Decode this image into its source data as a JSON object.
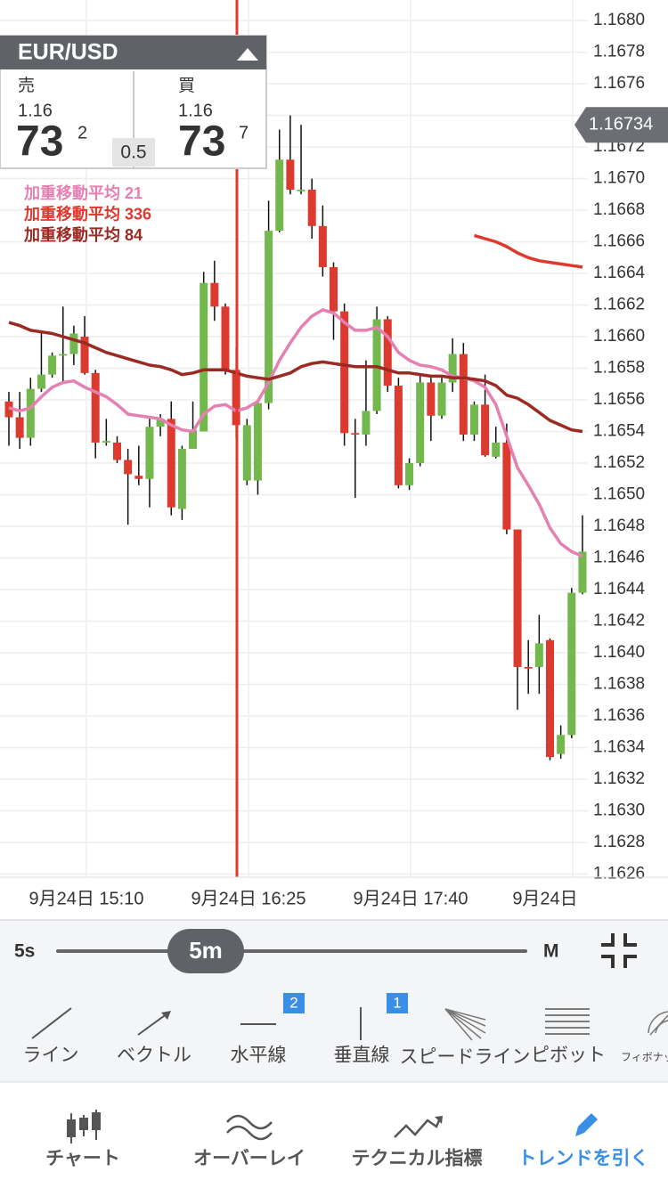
{
  "quote": {
    "pair": "EUR/USD",
    "sell_label": "売",
    "sell_big": "1.16",
    "sell_main": "73",
    "sell_pip": "2",
    "spread": 0.5,
    "buy_label": "買",
    "buy_big": "1.16",
    "buy_main": "73",
    "buy_pip": "7"
  },
  "chart_data": {
    "type": "candlestick",
    "up_color": "#72b84d",
    "down_color": "#dc3a2e",
    "ylim": [
      1.16258,
      1.16813
    ],
    "yticks": [
      1.1626,
      1.1628,
      {
        "value": 1.163,
        "label": "1.1630"
      },
      1.1632,
      1.1634,
      1.1636,
      1.1638,
      {
        "value": 1.164,
        "label": "1.1640"
      },
      1.1642,
      1.1644,
      1.1646,
      1.1648,
      {
        "value": 1.165,
        "label": "1.1650"
      },
      1.1652,
      1.1654,
      1.1656,
      1.1658,
      {
        "value": 1.166,
        "label": "1.1660"
      },
      1.1662,
      1.1664,
      1.1666,
      1.1668,
      {
        "value": 1.167,
        "label": "1.1670"
      },
      1.1672,
      1.1674,
      1.1676,
      1.1678,
      {
        "value": 1.168,
        "label": "1.1680"
      }
    ],
    "grid": true,
    "xtick_labels": [
      "9月24日 15:10",
      "9月24日 16:25",
      "9月24日 17:40",
      "9月24日"
    ],
    "current_price": 1.16734,
    "candles": [
      {
        "open": 1.16559,
        "high": 1.16565,
        "low": 1.16531,
        "close": 1.16549
      },
      {
        "open": 1.16549,
        "high": 1.16565,
        "low": 1.16529,
        "close": 1.16536
      },
      {
        "open": 1.16536,
        "high": 1.16574,
        "low": 1.16531,
        "close": 1.16567
      },
      {
        "open": 1.16567,
        "high": 1.16604,
        "low": 1.16565,
        "close": 1.16576
      },
      {
        "open": 1.16576,
        "high": 1.1659,
        "low": 1.16574,
        "close": 1.16588
      },
      {
        "open": 1.16588,
        "high": 1.16619,
        "low": 1.16571,
        "close": 1.16589
      },
      {
        "open": 1.16589,
        "high": 1.16607,
        "low": 1.16582,
        "close": 1.16602
      },
      {
        "open": 1.166,
        "high": 1.16613,
        "low": 1.16576,
        "close": 1.16577
      },
      {
        "open": 1.16577,
        "high": 1.16579,
        "low": 1.16523,
        "close": 1.16533
      },
      {
        "open": 1.16533,
        "high": 1.16548,
        "low": 1.16531,
        "close": 1.16534
      },
      {
        "open": 1.16533,
        "high": 1.16537,
        "low": 1.1652,
        "close": 1.16522
      },
      {
        "open": 1.16522,
        "high": 1.16529,
        "low": 1.16481,
        "close": 1.16513
      },
      {
        "open": 1.16512,
        "high": 1.16531,
        "low": 1.16506,
        "close": 1.1651
      },
      {
        "open": 1.1651,
        "high": 1.16548,
        "low": 1.16492,
        "close": 1.16543
      },
      {
        "open": 1.16543,
        "high": 1.16551,
        "low": 1.16537,
        "close": 1.16548
      },
      {
        "open": 1.16548,
        "high": 1.16559,
        "low": 1.16487,
        "close": 1.16492
      },
      {
        "open": 1.16491,
        "high": 1.16531,
        "low": 1.16484,
        "close": 1.16529
      },
      {
        "open": 1.16529,
        "high": 1.16559,
        "low": 1.16529,
        "close": 1.16541
      },
      {
        "open": 1.1654,
        "high": 1.16641,
        "low": 1.1654,
        "close": 1.16634
      },
      {
        "open": 1.16634,
        "high": 1.16648,
        "low": 1.1661,
        "close": 1.16619
      },
      {
        "open": 1.16619,
        "high": 1.16621,
        "low": 1.16576,
        "close": 1.16579
      },
      {
        "open": 1.16579,
        "high": 1.16593,
        "low": 1.16536,
        "close": 1.16544
      },
      {
        "open": 1.16509,
        "high": 1.16548,
        "low": 1.16506,
        "close": 1.16544
      },
      {
        "open": 1.16509,
        "high": 1.16559,
        "low": 1.165,
        "close": 1.16558
      },
      {
        "open": 1.16558,
        "high": 1.16686,
        "low": 1.16554,
        "close": 1.16667
      },
      {
        "open": 1.16667,
        "high": 1.16731,
        "low": 1.16666,
        "close": 1.16712
      },
      {
        "open": 1.16712,
        "high": 1.1674,
        "low": 1.1669,
        "close": 1.16693
      },
      {
        "open": 1.16692,
        "high": 1.16734,
        "low": 1.1669,
        "close": 1.16693
      },
      {
        "open": 1.16693,
        "high": 1.167,
        "low": 1.16662,
        "close": 1.1667
      },
      {
        "open": 1.1667,
        "high": 1.16683,
        "low": 1.16638,
        "close": 1.16644
      },
      {
        "open": 1.16644,
        "high": 1.16647,
        "low": 1.16598,
        "close": 1.16616
      },
      {
        "open": 1.16616,
        "high": 1.16621,
        "low": 1.16531,
        "close": 1.16539
      },
      {
        "open": 1.16539,
        "high": 1.16548,
        "low": 1.16498,
        "close": 1.16538
      },
      {
        "open": 1.16538,
        "high": 1.16585,
        "low": 1.16531,
        "close": 1.16553
      },
      {
        "open": 1.16553,
        "high": 1.16619,
        "low": 1.16551,
        "close": 1.16611
      },
      {
        "open": 1.16611,
        "high": 1.16613,
        "low": 1.16565,
        "close": 1.16569
      },
      {
        "open": 1.16569,
        "high": 1.16574,
        "low": 1.16504,
        "close": 1.16506
      },
      {
        "open": 1.16506,
        "high": 1.16523,
        "low": 1.16503,
        "close": 1.1652
      },
      {
        "open": 1.1652,
        "high": 1.16576,
        "low": 1.16518,
        "close": 1.16571
      },
      {
        "open": 1.16571,
        "high": 1.16574,
        "low": 1.16534,
        "close": 1.1655
      },
      {
        "open": 1.1655,
        "high": 1.16574,
        "low": 1.16548,
        "close": 1.16571
      },
      {
        "open": 1.16571,
        "high": 1.16599,
        "low": 1.16565,
        "close": 1.16589
      },
      {
        "open": 1.16589,
        "high": 1.16596,
        "low": 1.16534,
        "close": 1.16538
      },
      {
        "open": 1.16538,
        "high": 1.16559,
        "low": 1.16534,
        "close": 1.16557
      },
      {
        "open": 1.16557,
        "high": 1.16576,
        "low": 1.16524,
        "close": 1.16525
      },
      {
        "open": 1.16524,
        "high": 1.16543,
        "low": 1.16523,
        "close": 1.16533
      },
      {
        "open": 1.16533,
        "high": 1.16545,
        "low": 1.16475,
        "close": 1.16478
      },
      {
        "open": 1.16478,
        "high": 1.16478,
        "low": 1.16364,
        "close": 1.16391
      },
      {
        "open": 1.16391,
        "high": 1.16408,
        "low": 1.16374,
        "close": 1.1639
      },
      {
        "open": 1.16391,
        "high": 1.16424,
        "low": 1.16374,
        "close": 1.16406
      },
      {
        "open": 1.16408,
        "high": 1.16409,
        "low": 1.16332,
        "close": 1.16334
      },
      {
        "open": 1.16336,
        "high": 1.16354,
        "low": 1.16333,
        "close": 1.16348
      },
      {
        "open": 1.16348,
        "high": 1.16441,
        "low": 1.16346,
        "close": 1.16438
      },
      {
        "open": 1.16438,
        "high": 1.16487,
        "low": 1.16437,
        "close": 1.16464
      }
    ],
    "series": [
      {
        "name": "加重移動平均 21",
        "color": "#e580b2",
        "values": [
          1.16555,
          1.16553,
          1.16555,
          1.16562,
          1.16568,
          1.16571,
          1.16572,
          1.16568,
          1.16565,
          1.16562,
          1.16557,
          1.16551,
          1.1655,
          1.16549,
          1.16548,
          1.16544,
          1.16541,
          1.1654,
          1.16551,
          1.16556,
          1.16557,
          1.16553,
          1.16555,
          1.16559,
          1.16571,
          1.16585,
          1.16596,
          1.16606,
          1.16613,
          1.16617,
          1.16615,
          1.16609,
          1.16604,
          1.16604,
          1.16606,
          1.166,
          1.1659,
          1.16585,
          1.16582,
          1.16581,
          1.16579,
          1.16575,
          1.16574,
          1.16572,
          1.16568,
          1.16557,
          1.16537,
          1.16517,
          1.16506,
          1.16494,
          1.16479,
          1.16469,
          1.16464,
          1.16461
        ]
      },
      {
        "name": "加重移動平均 336",
        "color": "#dc3a2e",
        "values": [
          null,
          null,
          null,
          null,
          null,
          null,
          null,
          null,
          null,
          null,
          null,
          null,
          null,
          null,
          null,
          null,
          null,
          null,
          null,
          null,
          null,
          null,
          null,
          null,
          null,
          null,
          null,
          null,
          null,
          null,
          null,
          null,
          null,
          null,
          null,
          null,
          null,
          null,
          null,
          null,
          null,
          null,
          null,
          1.16664,
          1.16662,
          1.1666,
          1.16657,
          1.16653,
          1.1665,
          1.16648,
          1.16647,
          1.16646,
          1.16645,
          1.16644
        ]
      },
      {
        "name": "加重移動平均 84",
        "color": "#9a2a22",
        "values": [
          1.16609,
          1.16607,
          1.16604,
          1.16603,
          1.16602,
          1.166,
          1.16598,
          1.16596,
          1.16593,
          1.1659,
          1.16588,
          1.16586,
          1.16584,
          1.16582,
          1.16581,
          1.16579,
          1.16576,
          1.16577,
          1.16579,
          1.16579,
          1.16579,
          1.16577,
          1.16575,
          1.16574,
          1.16573,
          1.16575,
          1.16577,
          1.16581,
          1.16583,
          1.16584,
          1.16583,
          1.16582,
          1.16581,
          1.16581,
          1.16581,
          1.16579,
          1.16577,
          1.16577,
          1.16576,
          1.16575,
          1.16575,
          1.16574,
          1.16574,
          1.16573,
          1.16572,
          1.16569,
          1.16563,
          1.16561,
          1.16557,
          1.16552,
          1.16547,
          1.16544,
          1.16541,
          1.1654
        ]
      }
    ]
  },
  "slider": {
    "min_label": "5s",
    "current": "5m",
    "max_label": "M"
  },
  "tools": [
    {
      "label": "ライン"
    },
    {
      "label": "ベクトル"
    },
    {
      "label": "水平線",
      "badge": 2
    },
    {
      "label": "垂直線",
      "badge": 1
    },
    {
      "label": "スピードライン"
    },
    {
      "label": "ピボット"
    },
    {
      "label": "フィボナッ"
    }
  ],
  "nav": [
    "チャート",
    "オーバーレイ",
    "テクニカル指標",
    "トレンドを引く"
  ]
}
